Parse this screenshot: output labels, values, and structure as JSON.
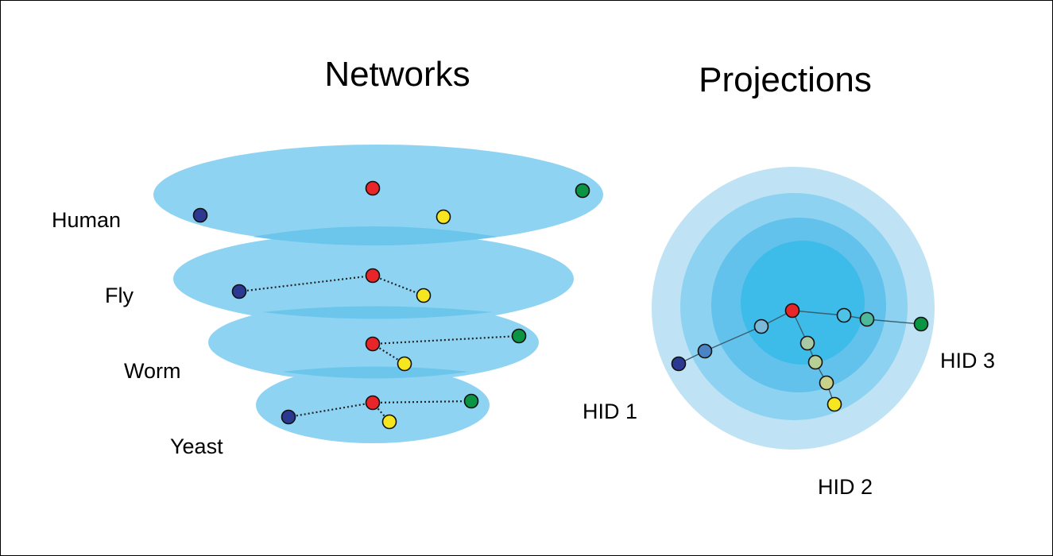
{
  "titles": {
    "networks": "Networks",
    "projections": "Projections"
  },
  "layers": {
    "human": "Human",
    "fly": "Fly",
    "worm": "Worm",
    "yeast": "Yeast"
  },
  "hids": {
    "hid1": "HID 1",
    "hid2": "HID 2",
    "hid3": "HID 3"
  },
  "colors": {
    "layer_fill": "#8fd3f2",
    "layer_overlap": "#6cc6ec",
    "ring_outer": "#bfe3f4",
    "ring_2": "#8ed2f1",
    "ring_3": "#62c2ec",
    "ring_inner": "#3dbbe9",
    "node_blue": "#2b3990",
    "node_red": "#e8262a",
    "node_yellow": "#f6e61f",
    "node_green": "#0b9444",
    "node_mid_blue": "#4a84c4",
    "node_light_blue": "#7cb9d8",
    "node_teal": "#4db89c",
    "node_sage": "#a8c9a4",
    "node_khaki": "#c9d28a"
  }
}
